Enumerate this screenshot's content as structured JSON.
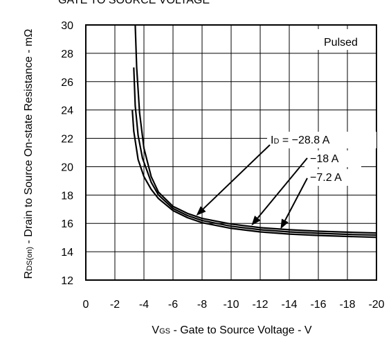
{
  "chart_data": {
    "type": "line",
    "title": "GATE TO SOURCE VOLTAGE",
    "xlabel_main": "V",
    "xlabel_sub": "GS",
    "xlabel_rest": " - Gate to Source Voltage - V",
    "ylabel_main": "R",
    "ylabel_sub": "DS(on)",
    "ylabel_rest": " - Drain to Source On-state Resistance - mΩ",
    "annotation": "Pulsed",
    "xlim": [
      0,
      -20
    ],
    "ylim": [
      12,
      30
    ],
    "x_ticks": [
      0,
      -2,
      -4,
      -6,
      -8,
      -10,
      -12,
      -14,
      -16,
      -18,
      -20
    ],
    "x_tick_labels": [
      "0",
      "-2",
      "-4",
      "-6",
      "-8",
      "-10",
      "-12",
      "-14",
      "-16",
      "-18",
      "-20"
    ],
    "y_ticks": [
      12,
      14,
      16,
      18,
      20,
      22,
      24,
      26,
      28,
      30
    ],
    "y_tick_labels": [
      "12",
      "14",
      "16",
      "18",
      "20",
      "22",
      "24",
      "26",
      "28",
      "30"
    ],
    "grid": true,
    "series": [
      {
        "name": "I_D = −28.8 A",
        "label_main": "I",
        "label_sub": "D",
        "label_rest": " = −28.8 A",
        "x": [
          -3.4,
          -3.5,
          -3.7,
          -4.0,
          -4.5,
          -5.0,
          -6.0,
          -7.0,
          -8.0,
          -10.0,
          -12.0,
          -14.0,
          -16.0,
          -18.0,
          -20.0
        ],
        "y": [
          30.0,
          27.0,
          23.8,
          21.3,
          19.3,
          18.2,
          17.2,
          16.7,
          16.35,
          15.95,
          15.7,
          15.55,
          15.45,
          15.38,
          15.32
        ]
      },
      {
        "name": "−18 A",
        "label_main": "",
        "label_sub": "",
        "label_rest": "−18 A",
        "x": [
          -3.3,
          -3.4,
          -3.6,
          -3.9,
          -4.5,
          -5.0,
          -6.0,
          -7.0,
          -8.0,
          -10.0,
          -12.0,
          -14.0,
          -16.0,
          -18.0,
          -20.0
        ],
        "y": [
          27.0,
          24.3,
          22.2,
          20.6,
          18.9,
          18.0,
          17.05,
          16.55,
          16.2,
          15.8,
          15.55,
          15.4,
          15.3,
          15.23,
          15.17
        ]
      },
      {
        "name": "−7.2 A",
        "label_main": "",
        "label_sub": "",
        "label_rest": "−7.2 A",
        "x": [
          -3.2,
          -3.3,
          -3.6,
          -4.0,
          -4.5,
          -5.0,
          -6.0,
          -7.0,
          -8.0,
          -10.0,
          -12.0,
          -14.0,
          -16.0,
          -18.0,
          -20.0
        ],
        "y": [
          24.0,
          22.5,
          20.5,
          19.3,
          18.4,
          17.75,
          16.9,
          16.4,
          16.05,
          15.65,
          15.4,
          15.25,
          15.15,
          15.08,
          15.02
        ]
      }
    ]
  }
}
